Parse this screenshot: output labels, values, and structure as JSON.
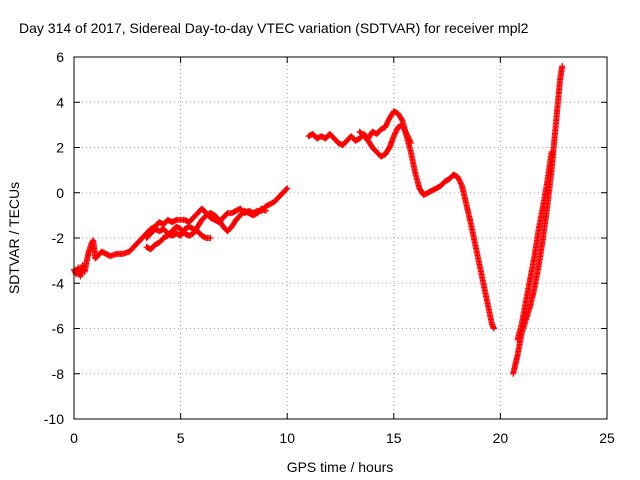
{
  "chart_data": {
    "type": "scatter",
    "title": "Day 314 of 2017, Sidereal Day-to-day VTEC variation (SDTVAR) for receiver mpl2",
    "xlabel": "GPS time / hours",
    "ylabel": "SDTVAR / TECUs",
    "xlim": [
      0,
      25
    ],
    "ylim": [
      -10,
      6
    ],
    "x_ticks": [
      0,
      5,
      10,
      15,
      20,
      25
    ],
    "y_ticks": [
      -10,
      -8,
      -6,
      -4,
      -2,
      0,
      2,
      4,
      6
    ],
    "x_tick_labels": [
      "0",
      "5",
      "10",
      "15",
      "20",
      "25"
    ],
    "y_tick_labels": [
      "-10",
      "-8",
      "-6",
      "-4",
      "-2",
      "0",
      "2",
      "4",
      "6"
    ],
    "grid": true,
    "marker": "+",
    "color": "#ff0000",
    "series": [
      {
        "segments": [
          [
            [
              0.0,
              -3.4
            ],
            [
              0.1,
              -3.6
            ],
            [
              0.2,
              -3.3
            ],
            [
              0.3,
              -3.7
            ],
            [
              0.4,
              -3.2
            ],
            [
              0.5,
              -3.5
            ],
            [
              0.6,
              -3.0
            ],
            [
              0.7,
              -2.6
            ],
            [
              0.8,
              -2.3
            ],
            [
              0.9,
              -2.1
            ],
            [
              1.0,
              -2.9
            ],
            [
              1.1,
              -2.8
            ],
            [
              1.3,
              -2.6
            ],
            [
              1.5,
              -2.7
            ],
            [
              1.7,
              -2.8
            ],
            [
              2.0,
              -2.7
            ],
            [
              2.3,
              -2.7
            ],
            [
              2.6,
              -2.6
            ],
            [
              2.8,
              -2.4
            ],
            [
              3.0,
              -2.2
            ],
            [
              3.2,
              -2.0
            ],
            [
              3.4,
              -1.8
            ],
            [
              3.6,
              -1.6
            ],
            [
              3.8,
              -1.5
            ],
            [
              4.0,
              -1.3
            ],
            [
              4.2,
              -1.4
            ],
            [
              4.4,
              -1.2
            ],
            [
              4.6,
              -1.3
            ],
            [
              4.8,
              -1.2
            ],
            [
              5.0,
              -1.2
            ],
            [
              5.2,
              -1.2
            ],
            [
              5.4,
              -1.3
            ],
            [
              5.6,
              -1.1
            ],
            [
              5.8,
              -0.9
            ],
            [
              6.0,
              -0.7
            ],
            [
              6.2,
              -0.9
            ],
            [
              6.4,
              -1.1
            ],
            [
              6.6,
              -1.2
            ],
            [
              6.8,
              -1.3
            ],
            [
              7.0,
              -1.1
            ],
            [
              7.2,
              -0.9
            ],
            [
              7.4,
              -0.9
            ],
            [
              7.6,
              -0.8
            ],
            [
              7.8,
              -0.7
            ],
            [
              8.0,
              -0.9
            ],
            [
              8.2,
              -0.8
            ],
            [
              8.4,
              -0.9
            ],
            [
              8.6,
              -0.8
            ],
            [
              8.8,
              -0.8
            ],
            [
              9.0,
              -0.6
            ],
            [
              9.2,
              -0.5
            ],
            [
              9.4,
              -0.4
            ],
            [
              9.6,
              -0.2
            ],
            [
              9.8,
              0.0
            ],
            [
              10.0,
              0.2
            ]
          ],
          [
            [
              3.4,
              -2.0
            ],
            [
              3.6,
              -1.8
            ],
            [
              3.8,
              -1.6
            ],
            [
              4.0,
              -1.7
            ],
            [
              4.2,
              -1.6
            ],
            [
              4.4,
              -1.8
            ],
            [
              4.6,
              -1.9
            ],
            [
              4.8,
              -1.8
            ],
            [
              5.0,
              -1.9
            ],
            [
              5.2,
              -1.6
            ],
            [
              5.4,
              -1.5
            ],
            [
              5.6,
              -1.6
            ],
            [
              5.8,
              -1.7
            ],
            [
              6.0,
              -1.9
            ],
            [
              6.2,
              -2.0
            ],
            [
              6.4,
              -2.0
            ]
          ],
          [
            [
              3.4,
              -2.4
            ],
            [
              3.6,
              -2.5
            ],
            [
              3.8,
              -2.3
            ],
            [
              4.0,
              -2.2
            ],
            [
              4.2,
              -2.0
            ],
            [
              4.4,
              -1.9
            ],
            [
              4.6,
              -1.7
            ],
            [
              4.8,
              -1.5
            ],
            [
              5.0,
              -1.6
            ],
            [
              5.2,
              -1.8
            ],
            [
              5.4,
              -1.9
            ],
            [
              5.6,
              -1.8
            ],
            [
              5.8,
              -1.5
            ],
            [
              6.0,
              -1.2
            ],
            [
              6.2,
              -1.0
            ],
            [
              6.4,
              -0.9
            ],
            [
              6.6,
              -1.0
            ],
            [
              6.8,
              -1.2
            ],
            [
              7.0,
              -1.5
            ],
            [
              7.2,
              -1.7
            ],
            [
              7.4,
              -1.5
            ],
            [
              7.6,
              -1.2
            ],
            [
              7.8,
              -1.0
            ],
            [
              8.0,
              -0.8
            ],
            [
              8.2,
              -0.9
            ],
            [
              8.4,
              -1.0
            ],
            [
              8.6,
              -0.9
            ],
            [
              8.8,
              -0.7
            ],
            [
              9.0,
              -0.8
            ]
          ],
          [
            [
              11.0,
              2.5
            ],
            [
              11.2,
              2.6
            ],
            [
              11.4,
              2.4
            ],
            [
              11.6,
              2.5
            ],
            [
              11.8,
              2.4
            ],
            [
              12.0,
              2.6
            ],
            [
              12.2,
              2.4
            ],
            [
              12.4,
              2.2
            ],
            [
              12.6,
              2.1
            ],
            [
              12.8,
              2.3
            ],
            [
              13.0,
              2.5
            ],
            [
              13.2,
              2.3
            ],
            [
              13.4,
              2.4
            ],
            [
              13.6,
              2.6
            ],
            [
              13.8,
              2.4
            ],
            [
              14.0,
              2.7
            ],
            [
              14.2,
              2.6
            ],
            [
              14.4,
              2.8
            ],
            [
              14.6,
              2.9
            ],
            [
              14.8,
              3.3
            ],
            [
              15.0,
              3.6
            ],
            [
              15.2,
              3.5
            ],
            [
              15.4,
              3.2
            ],
            [
              15.6,
              2.5
            ],
            [
              15.8,
              1.8
            ],
            [
              16.0,
              0.9
            ],
            [
              16.2,
              0.2
            ],
            [
              16.4,
              -0.1
            ],
            [
              16.6,
              0.0
            ],
            [
              16.8,
              0.1
            ],
            [
              17.0,
              0.2
            ],
            [
              17.2,
              0.3
            ],
            [
              17.4,
              0.5
            ],
            [
              17.6,
              0.6
            ],
            [
              17.8,
              0.8
            ],
            [
              18.0,
              0.7
            ],
            [
              18.2,
              0.3
            ],
            [
              18.4,
              -0.5
            ],
            [
              18.6,
              -1.3
            ],
            [
              18.8,
              -2.2
            ],
            [
              19.0,
              -3.1
            ],
            [
              19.2,
              -4.0
            ],
            [
              19.4,
              -4.9
            ],
            [
              19.6,
              -5.8
            ],
            [
              19.7,
              -6.0
            ]
          ],
          [
            [
              13.4,
              2.7
            ],
            [
              13.6,
              2.5
            ],
            [
              13.8,
              2.3
            ],
            [
              14.0,
              2.0
            ],
            [
              14.2,
              1.8
            ],
            [
              14.4,
              1.6
            ],
            [
              14.6,
              1.7
            ],
            [
              14.8,
              2.0
            ],
            [
              15.0,
              2.5
            ],
            [
              15.2,
              2.9
            ],
            [
              15.4,
              3.0
            ],
            [
              15.6,
              2.6
            ],
            [
              15.8,
              2.2
            ]
          ],
          [
            [
              20.6,
              -8.0
            ],
            [
              20.7,
              -7.6
            ],
            [
              20.8,
              -7.2
            ],
            [
              20.9,
              -6.7
            ],
            [
              21.0,
              -6.2
            ],
            [
              21.2,
              -5.6
            ],
            [
              21.4,
              -5.0
            ],
            [
              21.6,
              -4.2
            ],
            [
              21.8,
              -3.2
            ],
            [
              22.0,
              -2.0
            ],
            [
              22.2,
              -0.6
            ],
            [
              22.4,
              1.0
            ],
            [
              22.5,
              2.0
            ],
            [
              22.6,
              3.0
            ],
            [
              22.7,
              4.0
            ],
            [
              22.8,
              5.0
            ],
            [
              22.9,
              5.6
            ]
          ],
          [
            [
              20.8,
              -6.5
            ],
            [
              21.0,
              -5.8
            ],
            [
              21.2,
              -4.8
            ],
            [
              21.4,
              -3.8
            ],
            [
              21.6,
              -2.8
            ],
            [
              21.8,
              -1.6
            ],
            [
              22.0,
              -0.6
            ],
            [
              22.2,
              0.5
            ],
            [
              22.4,
              1.8
            ]
          ]
        ]
      }
    ]
  }
}
